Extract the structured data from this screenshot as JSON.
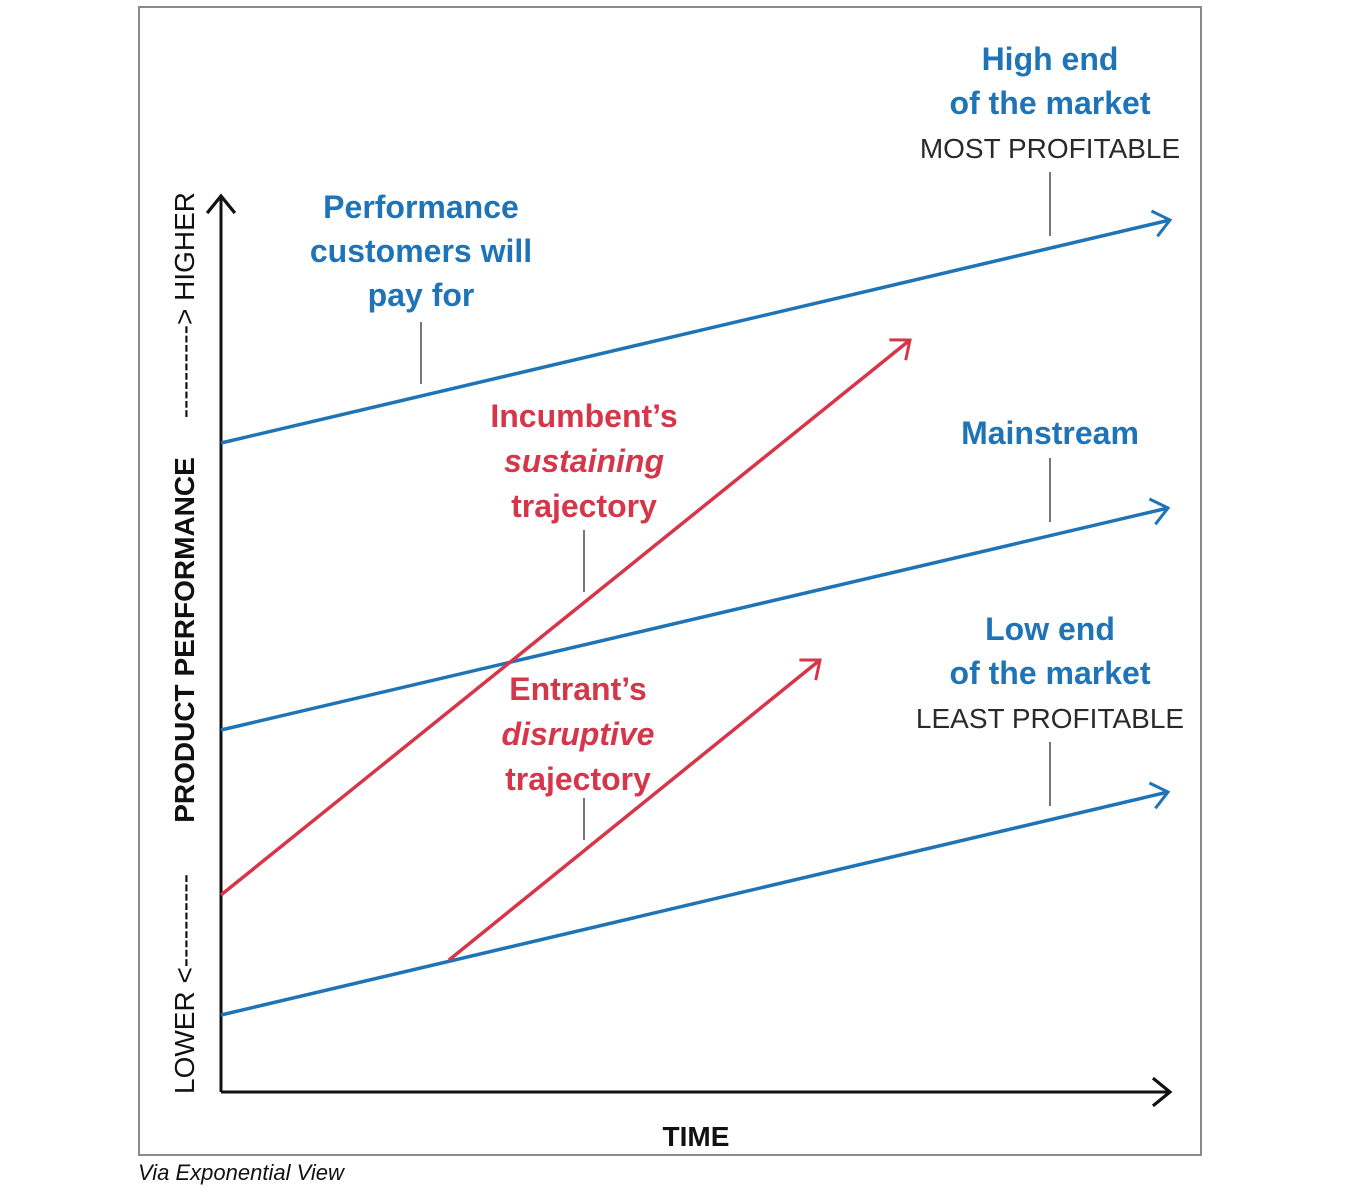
{
  "labels": {
    "high_end_1": "High end",
    "high_end_2": "of the market",
    "high_end_sub": "MOST PROFITABLE",
    "perf_1": "Performance",
    "perf_2": "customers will",
    "perf_3": "pay for",
    "mainstream": "Mainstream",
    "low_end_1": "Low end",
    "low_end_2": "of the market",
    "low_end_sub": "LEAST PROFITABLE",
    "incumbent_1": "Incumbent’s",
    "incumbent_2": "sustaining",
    "incumbent_3": "trajectory",
    "entrant_1": "Entrant’s",
    "entrant_2": "disruptive",
    "entrant_3": "trajectory"
  },
  "axes": {
    "x_label": "TIME",
    "y_label": "PRODUCT PERFORMANCE",
    "y_low": "LOWER <----------",
    "y_high": "----------> HIGHER"
  },
  "caption": "Via Exponential View",
  "colors": {
    "blue": "#1f73b7",
    "red": "#d63649",
    "axis": "#111111"
  }
}
